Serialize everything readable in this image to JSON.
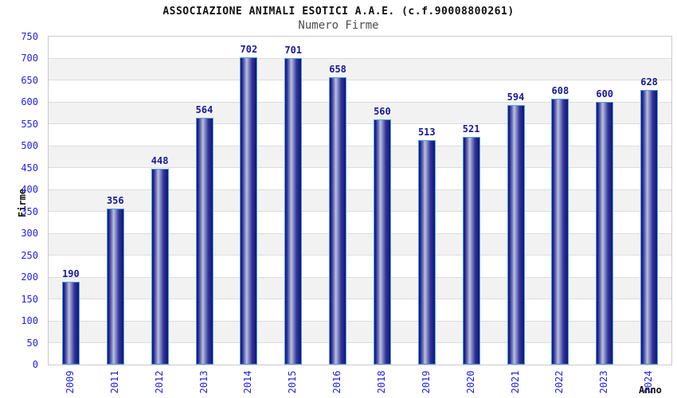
{
  "chart_data": {
    "type": "bar",
    "title": "ASSOCIAZIONE ANIMALI ESOTICI A.A.E. (c.f.90008800261)",
    "subtitle": "Numero Firme",
    "xlabel": "Anno",
    "ylabel": "Firme",
    "categories": [
      "2009",
      "2011",
      "2012",
      "2013",
      "2014",
      "2015",
      "2016",
      "2018",
      "2019",
      "2020",
      "2021",
      "2022",
      "2023",
      "2024"
    ],
    "values": [
      190,
      356,
      448,
      564,
      702,
      701,
      658,
      560,
      513,
      521,
      594,
      608,
      600,
      628
    ],
    "ylim": [
      0,
      750
    ],
    "yticks": [
      0,
      50,
      100,
      150,
      200,
      250,
      300,
      350,
      400,
      450,
      500,
      550,
      600,
      650,
      700,
      750
    ],
    "grid": true,
    "legend": "none",
    "colors": {
      "bar_dark": "#15156e",
      "bar_light": "#bcc1e1",
      "bar_border": "#4f9fe0",
      "value_label": "#1a1a8c",
      "axis_tick_label": "#2424cc",
      "band_gray": "#f2f2f2",
      "band_white": "#ffffff",
      "gridline": "#dcdcdc",
      "plot_border": "#c9c9c9",
      "title": "#111111",
      "subtitle": "#4d4d4d"
    }
  }
}
